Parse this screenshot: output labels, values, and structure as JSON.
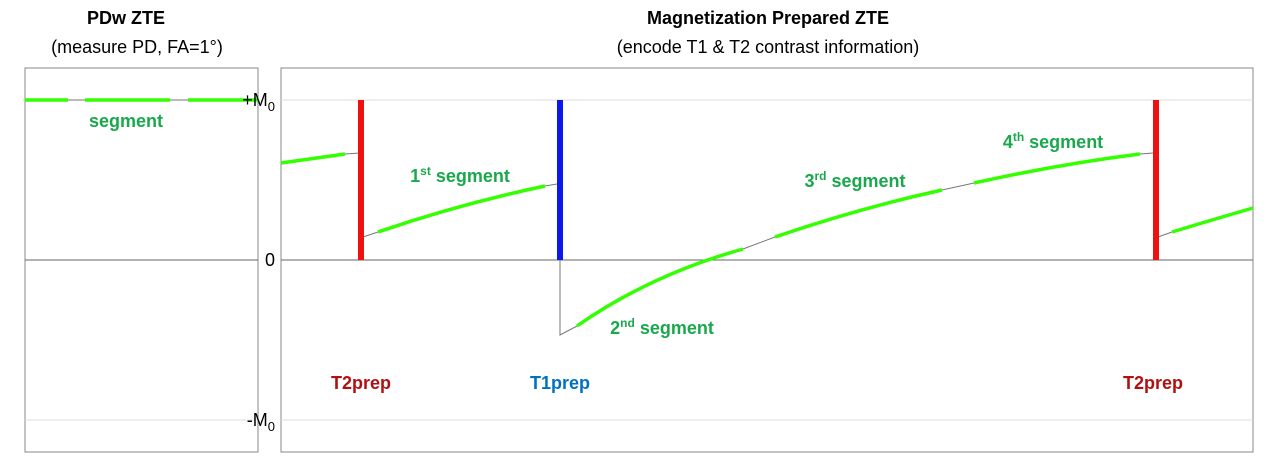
{
  "left_panel": {
    "title": "PDw ZTE",
    "subtitle": "(measure PD, FA=1°)",
    "segment_label": "segment"
  },
  "right_panel": {
    "title": "Magnetization Prepared ZTE",
    "subtitle": "(encode T1 & T2 contrast information)",
    "axis_labels": [
      {
        "main": "+M",
        "sub": "0"
      },
      {
        "main": "0"
      },
      {
        "main": "-M",
        "sub": "0"
      }
    ],
    "segments": [
      {
        "number": "1",
        "suffix": "st",
        "word": "segment"
      },
      {
        "number": "2",
        "suffix": "nd",
        "word": "segment"
      },
      {
        "number": "3",
        "suffix": "rd",
        "word": "segment"
      },
      {
        "number": "4",
        "suffix": "th",
        "word": "segment"
      }
    ],
    "preps": [
      "T2prep",
      "T1prep",
      "T2prep"
    ]
  }
}
